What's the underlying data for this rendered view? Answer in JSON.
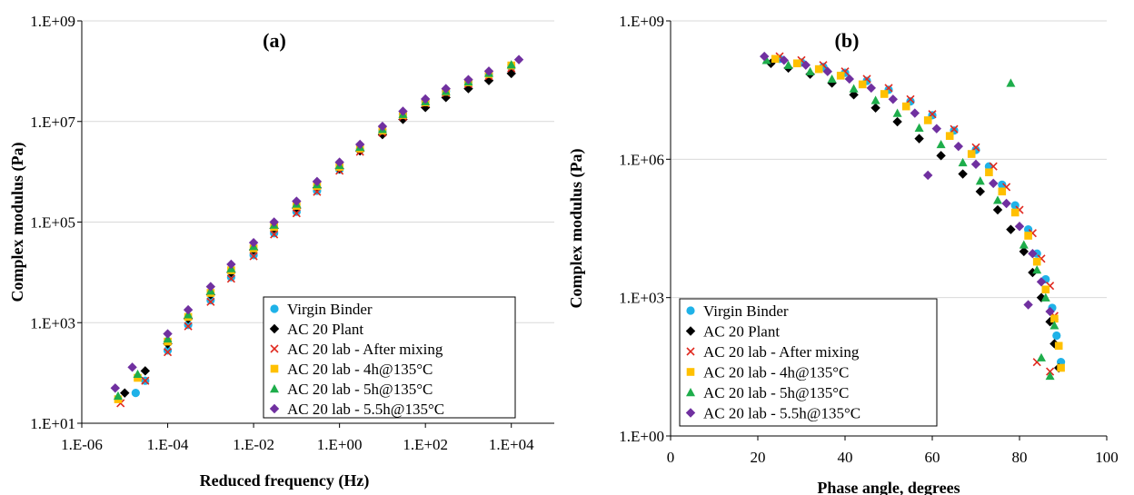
{
  "chart_data": [
    {
      "type": "scatter",
      "title": "(a)",
      "xlabel": "Reduced frequency (Hz)",
      "ylabel": "Complex modulus (Pa)",
      "x_scale": "log",
      "y_scale": "log",
      "xlim": [
        1e-06,
        100000.0
      ],
      "ylim": [
        10,
        1000000000.0
      ],
      "x_ticks": [
        "1.E-06",
        "1.E-04",
        "1.E-02",
        "1.E+00",
        "1.E+02",
        "1.E+04"
      ],
      "y_ticks": [
        "1.E+01",
        "1.E+03",
        "1.E+05",
        "1.E+07",
        "1.E+09"
      ],
      "grid": "horizontal",
      "legend_position": "bottom-right",
      "series": [
        {
          "name": "Virgin Binder",
          "color": "#1fb2e8",
          "marker": "circle",
          "x": [
            1.8e-05,
            3e-05,
            0.0001,
            0.0003,
            0.001,
            0.003,
            0.01,
            0.03,
            0.1,
            0.3,
            1,
            3,
            10,
            30,
            100,
            300,
            1000,
            3000,
            10000
          ],
          "y": [
            40,
            70,
            280,
            900,
            2800,
            8000,
            22000,
            60000,
            160000,
            420000,
            1100000,
            2700000,
            6500000,
            14000000,
            25000000,
            40000000,
            60000000,
            85000000,
            120000000
          ]
        },
        {
          "name": "AC 20 Plant",
          "color": "#000000",
          "marker": "diamond",
          "x": [
            1e-05,
            3e-05,
            0.0001,
            0.0003,
            0.001,
            0.003,
            0.01,
            0.03,
            0.1,
            0.3,
            1,
            3,
            10,
            30,
            100,
            300,
            1000,
            3000,
            10000
          ],
          "y": [
            40,
            110,
            380,
            1200,
            3600,
            10000,
            28000,
            75000,
            190000,
            480000,
            1150000,
            2600000,
            5500000,
            11000000,
            19000000,
            30000000,
            45000000,
            65000000,
            90000000
          ]
        },
        {
          "name": "AC 20 lab - After mixing",
          "color": "#e0281e",
          "marker": "x",
          "x": [
            8e-06,
            3e-05,
            0.0001,
            0.0003,
            0.001,
            0.003,
            0.01,
            0.03,
            0.1,
            0.3,
            1,
            3,
            10,
            30,
            100,
            300,
            1000,
            3000,
            10000
          ],
          "y": [
            25,
            70,
            260,
            850,
            2600,
            7500,
            21000,
            57000,
            150000,
            400000,
            1050000,
            2500000,
            6000000,
            12500000,
            23000000,
            37000000,
            56000000,
            80000000,
            115000000
          ]
        },
        {
          "name": "AC 20 lab - 4h@135°C",
          "color": "#ffc000",
          "marker": "square",
          "x": [
            7e-06,
            2e-05,
            0.0001,
            0.0003,
            0.001,
            0.003,
            0.01,
            0.03,
            0.1,
            0.3,
            1,
            3,
            10,
            30,
            100,
            300,
            1000,
            3000,
            10000
          ],
          "y": [
            30,
            80,
            420,
            1300,
            3900,
            11000,
            30000,
            80000,
            210000,
            520000,
            1250000,
            2900000,
            6600000,
            13500000,
            24000000,
            39000000,
            60000000,
            88000000,
            130000000
          ]
        },
        {
          "name": "AC 20 lab - 5h@135°C",
          "color": "#1ead4b",
          "marker": "triangle",
          "x": [
            7e-06,
            2e-05,
            0.0001,
            0.0003,
            0.001,
            0.003,
            0.01,
            0.03,
            0.1,
            0.3,
            1,
            3,
            10,
            30,
            100,
            300,
            1000,
            3000,
            10000
          ],
          "y": [
            35,
            95,
            480,
            1450,
            4300,
            12000,
            33000,
            88000,
            230000,
            560000,
            1350000,
            3100000,
            7000000,
            14000000,
            25000000,
            40000000,
            62000000,
            92000000,
            135000000
          ]
        },
        {
          "name": "AC 20 lab - 5.5h@135°C",
          "color": "#7030a0",
          "marker": "diamond",
          "x": [
            6e-06,
            1.5e-05,
            0.0001,
            0.0003,
            0.001,
            0.003,
            0.01,
            0.03,
            0.1,
            0.3,
            1,
            3,
            10,
            30,
            100,
            300,
            1000,
            3000,
            15000
          ],
          "y": [
            50,
            130,
            600,
            1800,
            5200,
            14500,
            39000,
            100000,
            260000,
            640000,
            1550000,
            3500000,
            8000000,
            16000000,
            28000000,
            45000000,
            68000000,
            100000000,
            170000000
          ]
        }
      ]
    },
    {
      "type": "scatter",
      "title": "(b)",
      "xlabel": "Phase angle, degrees",
      "ylabel": "Complex modulus (Pa)",
      "x_scale": "linear",
      "y_scale": "log",
      "xlim": [
        0,
        100
      ],
      "ylim": [
        1,
        1000000000.0
      ],
      "x_ticks": [
        "0",
        "20",
        "40",
        "60",
        "80",
        "100"
      ],
      "y_ticks": [
        "1.E+00",
        "1.E+03",
        "1.E+06",
        "1.E+09"
      ],
      "grid": "horizontal",
      "legend_position": "bottom-left",
      "series": [
        {
          "name": "Virgin Binder",
          "color": "#1fb2e8",
          "marker": "circle",
          "x": [
            25,
            30,
            35,
            40,
            45,
            50,
            55,
            60,
            65,
            70,
            73,
            76,
            79,
            82,
            84,
            86,
            87.5,
            88.5,
            89.5
          ],
          "y": [
            150000000,
            125000000,
            100000000,
            75000000,
            50000000,
            32000000,
            18000000,
            9000000,
            4200000,
            1600000,
            700000,
            280000,
            100000,
            30000,
            9000,
            2500,
            600,
            150,
            40
          ]
        },
        {
          "name": "AC 20 Plant",
          "color": "#000000",
          "marker": "diamond",
          "x": [
            23,
            27,
            32,
            37,
            42,
            47,
            52,
            57,
            62,
            67,
            71,
            75,
            78,
            81,
            83,
            85,
            87,
            88,
            89
          ],
          "y": [
            120000000,
            95000000,
            70000000,
            45000000,
            25000000,
            13000000,
            6500000,
            2800000,
            1200000,
            480000,
            200000,
            80000,
            30000,
            10000,
            3500,
            1000,
            300,
            100,
            30
          ]
        },
        {
          "name": "AC 20 lab - After mixing",
          "color": "#e0281e",
          "marker": "x",
          "x": [
            25,
            30,
            35,
            40,
            45,
            50,
            55,
            60,
            65,
            70,
            74,
            77,
            80,
            83,
            85,
            87,
            88,
            84,
            87
          ],
          "y": [
            170000000,
            140000000,
            110000000,
            80000000,
            55000000,
            35000000,
            20000000,
            9500000,
            4500000,
            1800000,
            700000,
            250000,
            80000,
            25000,
            7000,
            1800,
            400,
            40,
            25
          ]
        },
        {
          "name": "AC 20 lab - 4h@135°C",
          "color": "#ffc000",
          "marker": "square",
          "x": [
            24,
            29,
            34,
            39,
            44,
            49,
            54,
            59,
            64,
            69,
            73,
            76,
            79,
            82,
            84,
            86,
            88,
            89,
            89.5
          ],
          "y": [
            150000000,
            120000000,
            90000000,
            65000000,
            42000000,
            26000000,
            14000000,
            7000000,
            3200000,
            1300000,
            520000,
            200000,
            70000,
            22000,
            6000,
            1500,
            350,
            90,
            30
          ]
        },
        {
          "name": "AC 20 lab - 5h@135°C",
          "color": "#1ead4b",
          "marker": "triangle",
          "x": [
            22,
            27,
            32,
            37,
            42,
            47,
            52,
            57,
            62,
            67,
            71,
            75,
            78,
            81,
            84,
            86,
            88,
            85,
            87
          ],
          "y": [
            140000000,
            110000000,
            80000000,
            55000000,
            34000000,
            19000000,
            10000000,
            4800000,
            2100000,
            850000,
            340000,
            130000,
            45000000,
            14000,
            4000,
            1000,
            250,
            50,
            20
          ]
        },
        {
          "name": "AC 20 lab - 5.5h@135°C",
          "color": "#7030a0",
          "marker": "diamond",
          "x": [
            21.5,
            26,
            31,
            36,
            41,
            46,
            51,
            56,
            61,
            66,
            70,
            74,
            77,
            80,
            83,
            85,
            87,
            82,
            59
          ],
          "y": [
            170000000,
            140000000,
            110000000,
            80000000,
            55000000,
            35000000,
            20000000,
            10000000,
            4600000,
            1900000,
            780000,
            300000,
            110000,
            35000,
            9000,
            2200,
            500,
            700,
            450000
          ]
        }
      ]
    }
  ]
}
